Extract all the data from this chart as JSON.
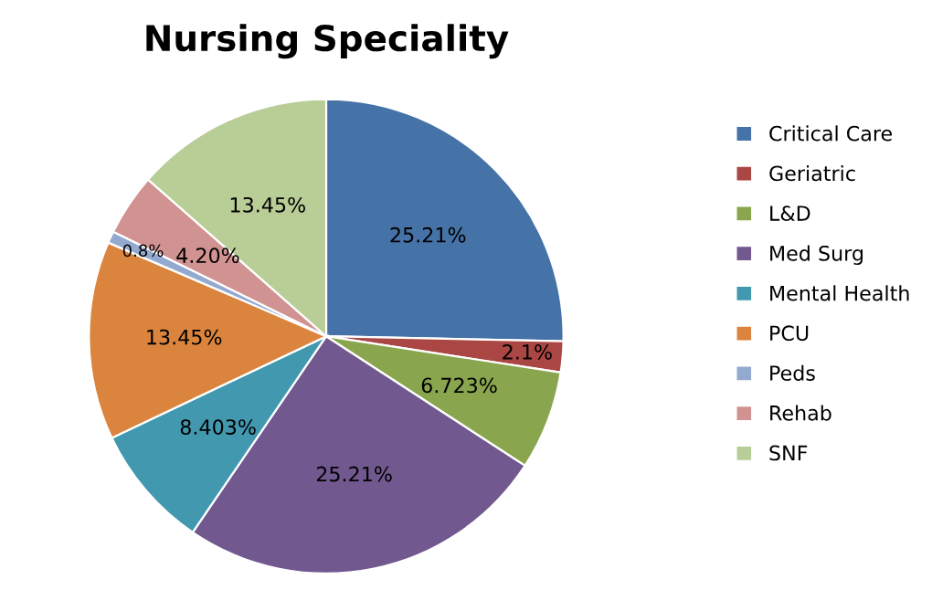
{
  "chart_data": {
    "type": "pie",
    "title": "Nursing Speciality",
    "categories": [
      "Critical Care",
      "Geriatric",
      "L&D",
      "Med Surg",
      "Mental Health",
      "PCU",
      "Peds",
      "Rehab",
      "SNF"
    ],
    "values": [
      25.21,
      2.1,
      6.723,
      25.21,
      8.403,
      13.45,
      0.8,
      4.2,
      13.45
    ],
    "value_labels": [
      "25.21%",
      "2.1%",
      "6.723%",
      "25.21%",
      "8.403%",
      "13.45%",
      "0.8%",
      "4.20%",
      "13.45%"
    ],
    "colors": [
      "#4572a7",
      "#aa4643",
      "#89a54e",
      "#71588f",
      "#4198af",
      "#db843d",
      "#93a9cf",
      "#d19392",
      "#b9cd96"
    ],
    "legend": "right"
  }
}
